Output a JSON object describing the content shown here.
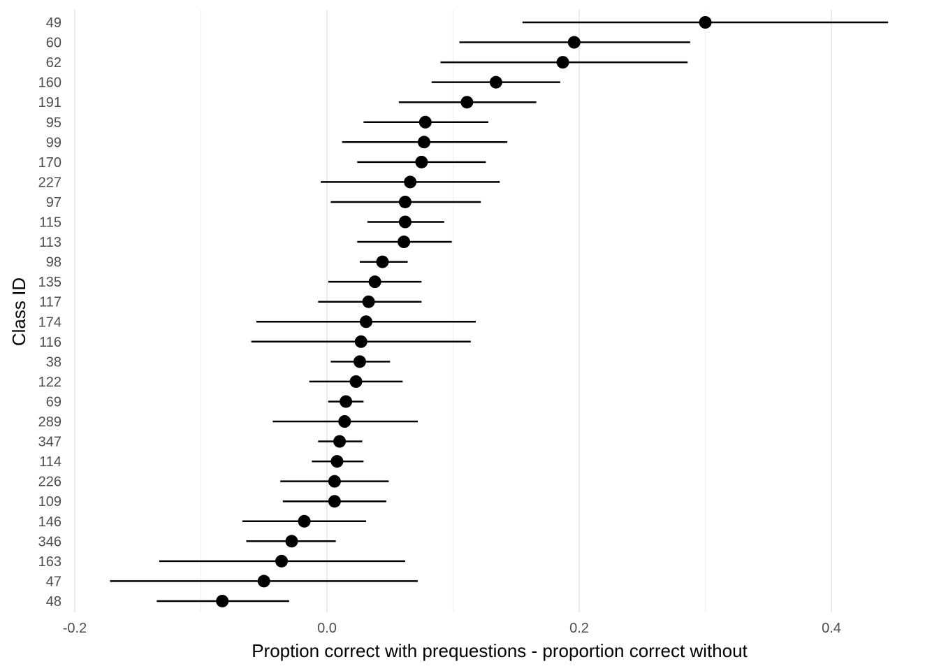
{
  "chart_data": {
    "type": "scatter",
    "subtype": "dot-and-whisker",
    "xlabel": "Proption correct with prequestions - proportion correct without",
    "ylabel": "Class ID",
    "xlim": [
      -0.22,
      0.45
    ],
    "x_ticks": [
      -0.2,
      0.0,
      0.2,
      0.4
    ],
    "x_tick_labels": [
      "-0.2",
      "0.0",
      "0.2",
      "0.4"
    ],
    "grid": true,
    "legend": "none",
    "point_color": "#000000",
    "rows": [
      {
        "id": "49",
        "estimate": 0.3,
        "lower": 0.155,
        "upper": 0.445
      },
      {
        "id": "60",
        "estimate": 0.196,
        "lower": 0.105,
        "upper": 0.288
      },
      {
        "id": "62",
        "estimate": 0.187,
        "lower": 0.09,
        "upper": 0.286
      },
      {
        "id": "160",
        "estimate": 0.134,
        "lower": 0.083,
        "upper": 0.185
      },
      {
        "id": "191",
        "estimate": 0.111,
        "lower": 0.057,
        "upper": 0.166
      },
      {
        "id": "95",
        "estimate": 0.078,
        "lower": 0.029,
        "upper": 0.128
      },
      {
        "id": "99",
        "estimate": 0.077,
        "lower": 0.012,
        "upper": 0.143
      },
      {
        "id": "170",
        "estimate": 0.075,
        "lower": 0.024,
        "upper": 0.126
      },
      {
        "id": "227",
        "estimate": 0.066,
        "lower": -0.005,
        "upper": 0.137
      },
      {
        "id": "97",
        "estimate": 0.062,
        "lower": 0.003,
        "upper": 0.122
      },
      {
        "id": "115",
        "estimate": 0.062,
        "lower": 0.032,
        "upper": 0.093
      },
      {
        "id": "113",
        "estimate": 0.061,
        "lower": 0.024,
        "upper": 0.099
      },
      {
        "id": "98",
        "estimate": 0.044,
        "lower": 0.026,
        "upper": 0.064
      },
      {
        "id": "135",
        "estimate": 0.038,
        "lower": 0.001,
        "upper": 0.075
      },
      {
        "id": "117",
        "estimate": 0.033,
        "lower": -0.007,
        "upper": 0.075
      },
      {
        "id": "174",
        "estimate": 0.031,
        "lower": -0.056,
        "upper": 0.118
      },
      {
        "id": "116",
        "estimate": 0.027,
        "lower": -0.06,
        "upper": 0.114
      },
      {
        "id": "38",
        "estimate": 0.026,
        "lower": 0.003,
        "upper": 0.05
      },
      {
        "id": "122",
        "estimate": 0.023,
        "lower": -0.014,
        "upper": 0.06
      },
      {
        "id": "69",
        "estimate": 0.015,
        "lower": 0.001,
        "upper": 0.029
      },
      {
        "id": "289",
        "estimate": 0.014,
        "lower": -0.043,
        "upper": 0.072
      },
      {
        "id": "347",
        "estimate": 0.01,
        "lower": -0.007,
        "upper": 0.028
      },
      {
        "id": "114",
        "estimate": 0.008,
        "lower": -0.012,
        "upper": 0.029
      },
      {
        "id": "226",
        "estimate": 0.006,
        "lower": -0.037,
        "upper": 0.049
      },
      {
        "id": "109",
        "estimate": 0.006,
        "lower": -0.035,
        "upper": 0.047
      },
      {
        "id": "146",
        "estimate": -0.018,
        "lower": -0.067,
        "upper": 0.031
      },
      {
        "id": "346",
        "estimate": -0.028,
        "lower": -0.064,
        "upper": 0.007
      },
      {
        "id": "163",
        "estimate": -0.036,
        "lower": -0.133,
        "upper": 0.062
      },
      {
        "id": "47",
        "estimate": -0.05,
        "lower": -0.172,
        "upper": 0.072
      },
      {
        "id": "48",
        "estimate": -0.083,
        "lower": -0.135,
        "upper": -0.03
      }
    ]
  }
}
